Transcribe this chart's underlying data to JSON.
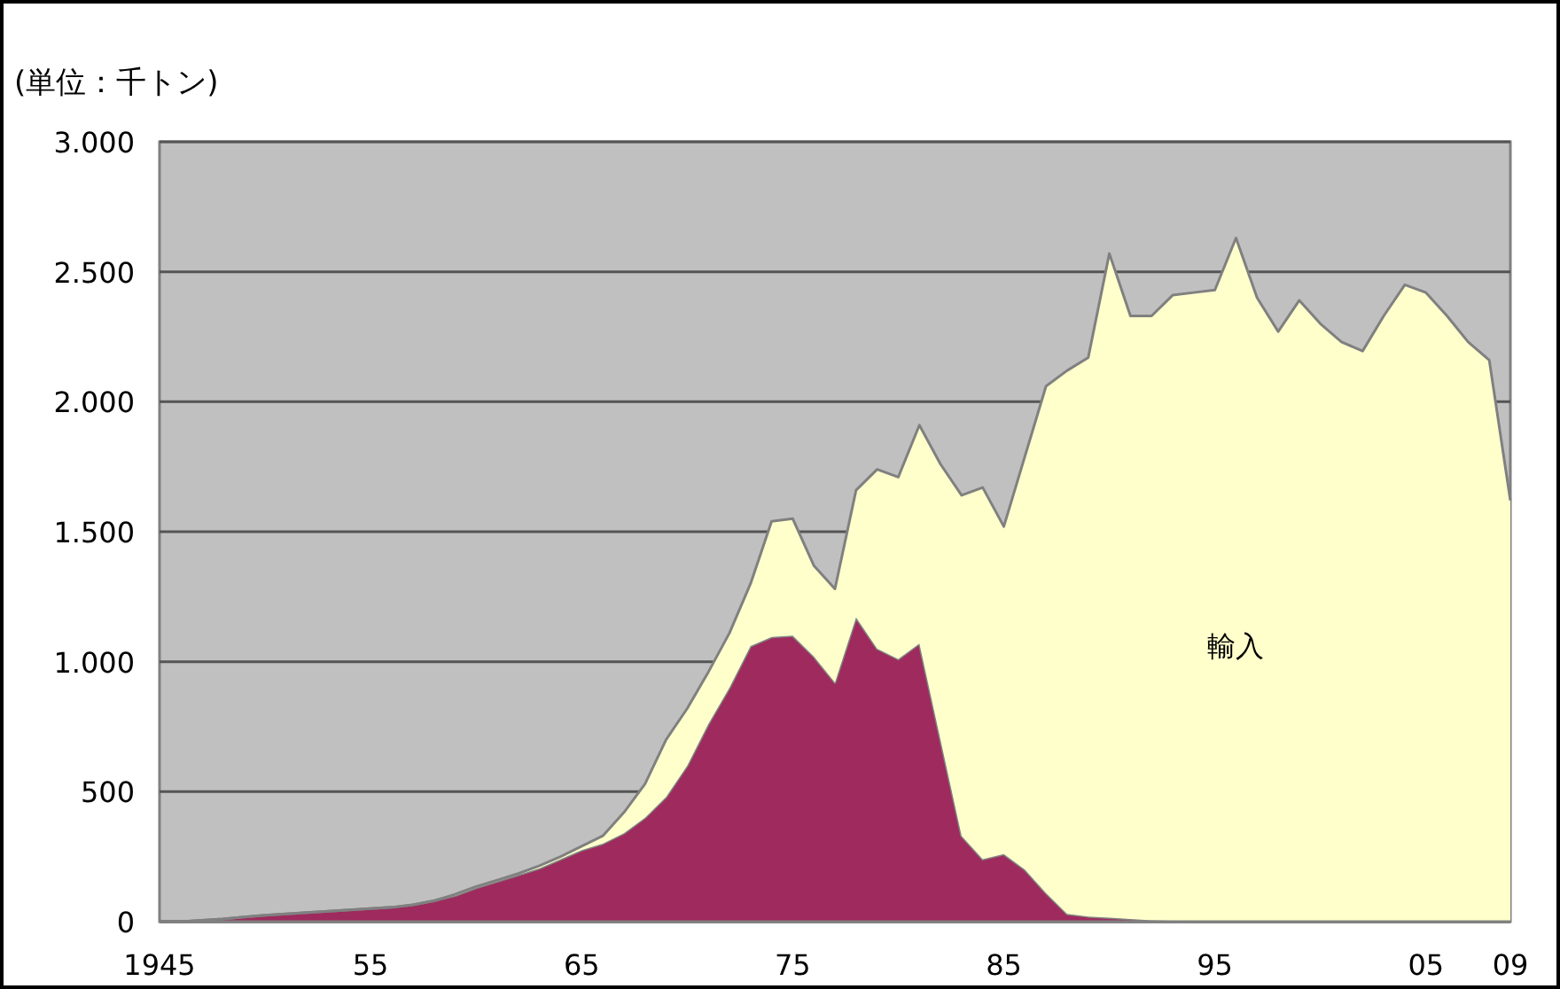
{
  "chart_data": {
    "type": "area",
    "stacked": true,
    "title": "(単位：千トン)",
    "x": [
      1945,
      1946,
      1947,
      1948,
      1949,
      1950,
      1951,
      1952,
      1953,
      1954,
      1955,
      1956,
      1957,
      1958,
      1959,
      1960,
      1961,
      1962,
      1963,
      1964,
      1965,
      1966,
      1967,
      1968,
      1969,
      1970,
      1971,
      1972,
      1973,
      1974,
      1975,
      1976,
      1977,
      1978,
      1979,
      1980,
      1981,
      1982,
      1983,
      1984,
      1985,
      1986,
      1987,
      1988,
      1989,
      1990,
      1991,
      1992,
      1993,
      1994,
      1995,
      1996,
      1997,
      1998,
      1999,
      2000,
      2001,
      2002,
      2003,
      2004,
      2005,
      2006,
      2007,
      2008,
      2009
    ],
    "series": [
      {
        "color": "#9e2a5e",
        "values": [
          0,
          0,
          5,
          10,
          18,
          25,
          30,
          35,
          40,
          45,
          50,
          55,
          65,
          80,
          100,
          130,
          155,
          180,
          205,
          240,
          275,
          300,
          340,
          400,
          480,
          600,
          760,
          900,
          1060,
          1095,
          1100,
          1020,
          920,
          1170,
          1050,
          1010,
          1070,
          700,
          330,
          240,
          260,
          200,
          110,
          30,
          20,
          15,
          10,
          5,
          3,
          0,
          0,
          0,
          0,
          0,
          0,
          0,
          0,
          0,
          0,
          0,
          0,
          0,
          0,
          0,
          0
        ]
      },
      {
        "name": "輸入",
        "color": "#ffffcc",
        "values": [
          0,
          0,
          0,
          0,
          0,
          0,
          0,
          0,
          0,
          0,
          0,
          0,
          0,
          0,
          5,
          5,
          5,
          5,
          10,
          10,
          15,
          30,
          80,
          130,
          220,
          220,
          200,
          210,
          240,
          445,
          450,
          350,
          360,
          490,
          690,
          700,
          840,
          1060,
          1310,
          1430,
          1260,
          1590,
          1950,
          2090,
          2150,
          2555,
          2320,
          2325,
          2407,
          2420,
          2430,
          2630,
          2400,
          2270,
          2390,
          2300,
          2230,
          2195,
          2330,
          2450,
          2420,
          2330,
          2230,
          2160,
          1620
        ]
      }
    ],
    "xlim": [
      1945,
      2009
    ],
    "xticks": [
      {
        "value": 1945,
        "label": "1945"
      },
      {
        "value": 1955,
        "label": "55"
      },
      {
        "value": 1965,
        "label": "65"
      },
      {
        "value": 1975,
        "label": "75"
      },
      {
        "value": 1985,
        "label": "85"
      },
      {
        "value": 1995,
        "label": "95"
      },
      {
        "value": 2005,
        "label": "05"
      },
      {
        "value": 2009,
        "label": "09"
      }
    ],
    "ylim": [
      0,
      3000
    ],
    "yticks": [
      0,
      {
        "value": 500,
        "label": "500"
      },
      {
        "value": 1000,
        "label": "1.000"
      },
      {
        "value": 1500,
        "label": "1.500"
      },
      {
        "value": 2000,
        "label": "2.000"
      },
      {
        "value": 2500,
        "label": "2.500"
      },
      {
        "value": 3000,
        "label": "3.000"
      }
    ],
    "grid": "y"
  }
}
